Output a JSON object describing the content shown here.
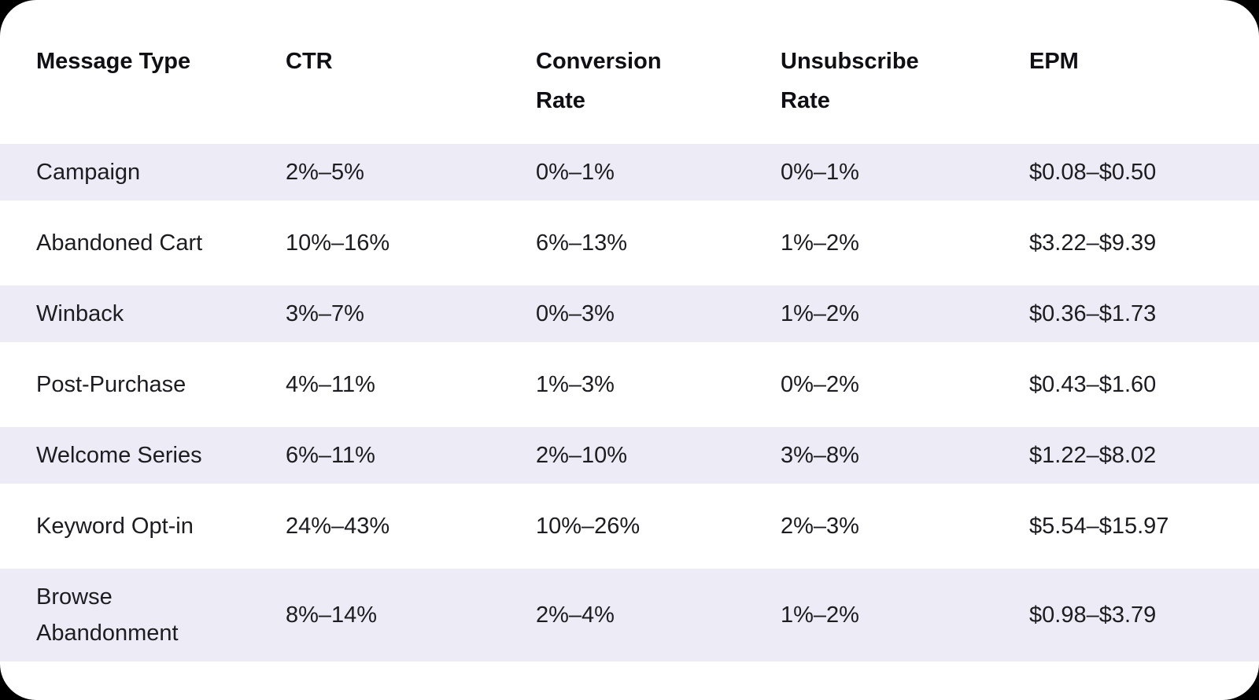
{
  "colors": {
    "page_background": "#000000",
    "card_background": "#ffffff",
    "row_stripe": "#ecebf6",
    "header_text": "#0f0f14",
    "body_text": "#1c1c21"
  },
  "table": {
    "columns": [
      {
        "label": "Message Type"
      },
      {
        "label": "CTR"
      },
      {
        "label": "Conversion\nRate"
      },
      {
        "label": "Unsubscribe\nRate"
      },
      {
        "label": "EPM"
      }
    ],
    "rows": [
      {
        "cells": [
          "Campaign",
          "2%–5%",
          "0%–1%",
          "0%–1%",
          "$0.08–$0.50"
        ]
      },
      {
        "cells": [
          "Abandoned Cart",
          "10%–16%",
          "6%–13%",
          "1%–2%",
          "$3.22–$9.39"
        ]
      },
      {
        "cells": [
          "Winback",
          "3%–7%",
          "0%–3%",
          "1%–2%",
          "$0.36–$1.73"
        ]
      },
      {
        "cells": [
          "Post-Purchase",
          "4%–11%",
          "1%–3%",
          "0%–2%",
          "$0.43–$1.60"
        ]
      },
      {
        "cells": [
          "Welcome Series",
          "6%–11%",
          "2%–10%",
          "3%–8%",
          "$1.22–$8.02"
        ]
      },
      {
        "cells": [
          "Keyword Opt-in",
          "24%–43%",
          "10%–26%",
          "2%–3%",
          "$5.54–$15.97"
        ]
      },
      {
        "cells": [
          "Browse\nAbandonment",
          "8%–14%",
          "2%–4%",
          "1%–2%",
          "$0.98–$3.79"
        ]
      }
    ]
  },
  "chart_data": {
    "type": "table",
    "title": "",
    "columns": [
      "Message Type",
      "CTR",
      "Conversion Rate",
      "Unsubscribe Rate",
      "EPM"
    ],
    "rows": [
      [
        "Campaign",
        "2%–5%",
        "0%–1%",
        "0%–1%",
        "$0.08–$0.50"
      ],
      [
        "Abandoned Cart",
        "10%–16%",
        "6%–13%",
        "1%–2%",
        "$3.22–$9.39"
      ],
      [
        "Winback",
        "3%–7%",
        "0%–3%",
        "1%–2%",
        "$0.36–$1.73"
      ],
      [
        "Post-Purchase",
        "4%–11%",
        "1%–3%",
        "0%–2%",
        "$0.43–$1.60"
      ],
      [
        "Welcome Series",
        "6%–11%",
        "2%–10%",
        "3%–8%",
        "$1.22–$8.02"
      ],
      [
        "Keyword Opt-in",
        "24%–43%",
        "10%–26%",
        "2%–3%",
        "$5.54–$15.97"
      ],
      [
        "Browse Abandonment",
        "8%–14%",
        "2%–4%",
        "1%–2%",
        "$0.98–$3.79"
      ]
    ],
    "layout_hints": {
      "striped_rows": "odd data rows shaded #ecebf6",
      "header_style": "bold, top-aligned, two-line wrap on Conversion Rate and Unsubscribe Rate",
      "card": "white rounded-corner card on black background"
    }
  }
}
